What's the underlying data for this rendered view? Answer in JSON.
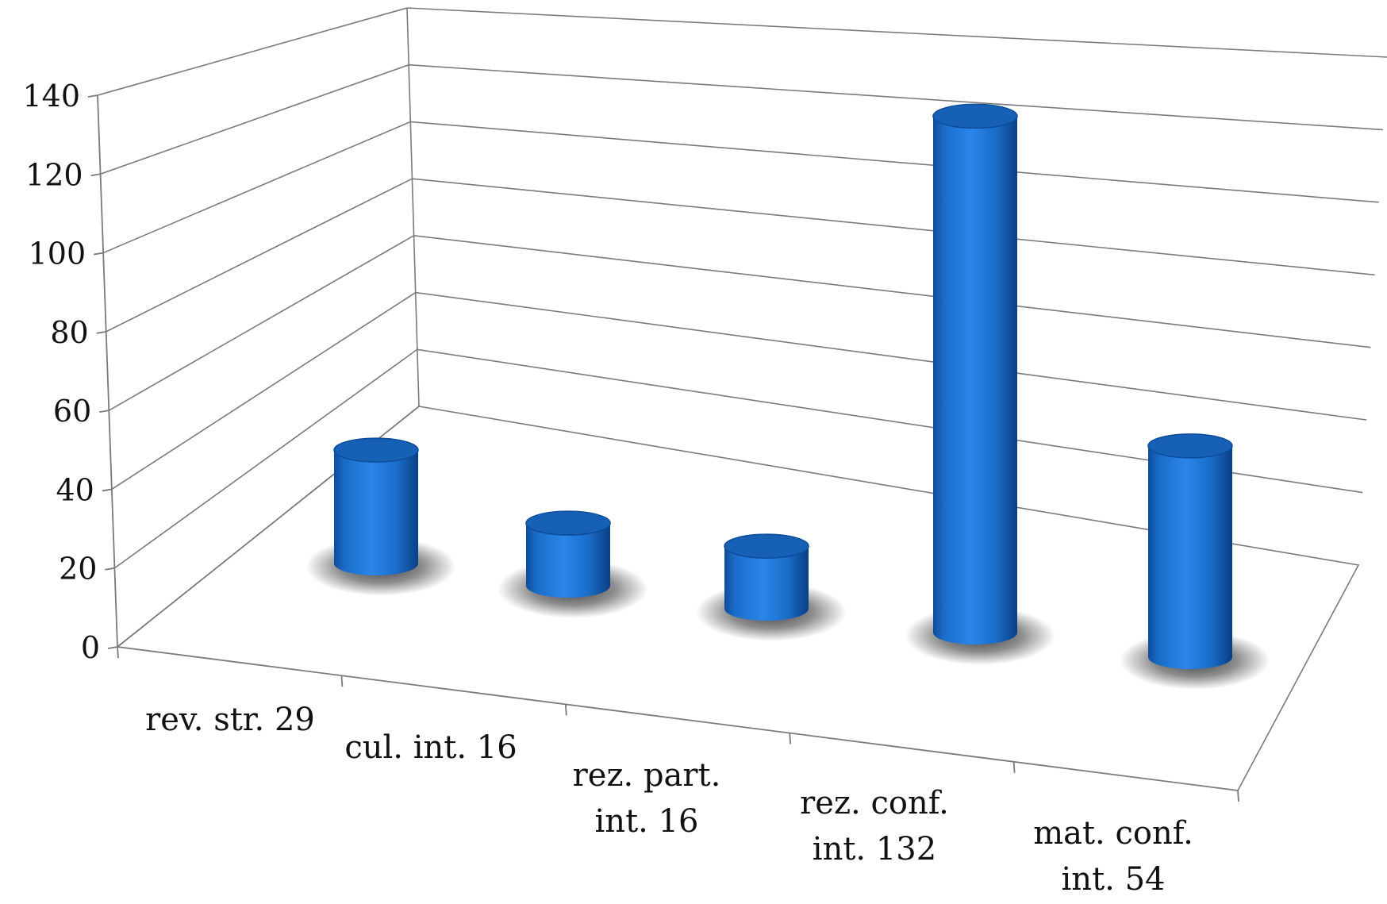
{
  "chart_data": {
    "type": "bar",
    "style": "3d-cylinder",
    "categories": [
      [
        "rev. str. 29"
      ],
      [
        "cul. int. 16"
      ],
      [
        "rez. part.",
        "int. 16"
      ],
      [
        "rez. conf.",
        "int.  132"
      ],
      [
        "mat. conf.",
        "int. 54"
      ]
    ],
    "values": [
      29,
      16,
      16,
      132,
      54
    ],
    "yticks": [
      "0",
      "20",
      "40",
      "60",
      "80",
      "100",
      "120",
      "140"
    ],
    "ylim": [
      0,
      140
    ],
    "grid": true,
    "legend": false,
    "bar_color": "#1a72d6",
    "bar_dark": "#0d4c9a",
    "bar_top": "#1660b6"
  }
}
